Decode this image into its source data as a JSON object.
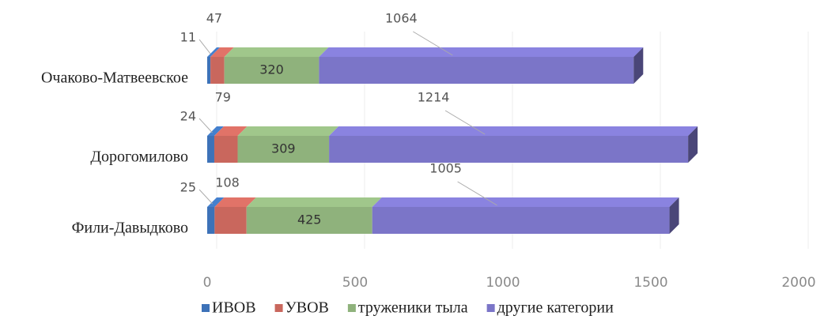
{
  "chart_data": {
    "type": "bar",
    "orientation": "horizontal",
    "stacked": true,
    "categories": [
      "Очаково-Матвеевское",
      "Дорогомилово",
      "Фили-Давыдково"
    ],
    "series": [
      {
        "name": "ИВОВ",
        "color": "#3d72b8",
        "values": [
          11,
          24,
          25
        ]
      },
      {
        "name": "УВОВ",
        "color": "#c9675d",
        "values": [
          47,
          79,
          108
        ]
      },
      {
        "name": "труженики тыла",
        "color": "#8fb27c",
        "values": [
          320,
          309,
          425
        ]
      },
      {
        "name": "другие категории",
        "color": "#7b75c8",
        "values": [
          1064,
          1214,
          1005
        ]
      }
    ],
    "xlim": [
      0,
      2000
    ],
    "xticks": [
      0,
      500,
      1000,
      1500,
      2000
    ],
    "grid": true,
    "legend": "bottom"
  }
}
